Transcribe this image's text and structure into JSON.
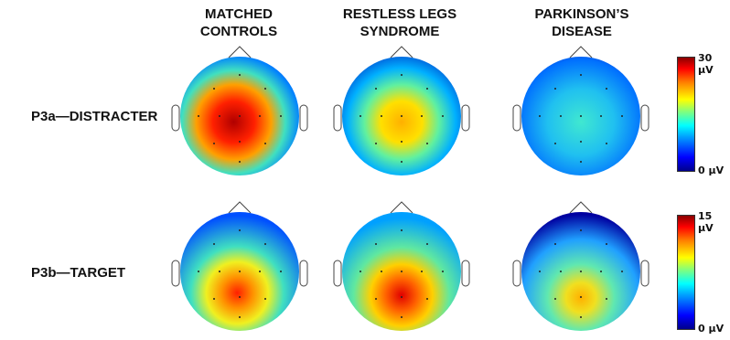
{
  "columns": [
    {
      "line1": "MATCHED",
      "line2": "CONTROLS"
    },
    {
      "line1": "RESTLESS LEGS",
      "line2": "SYNDROME"
    },
    {
      "line1": "PARKINSON’S",
      "line2": "DISEASE"
    }
  ],
  "rows": [
    {
      "label": "P3a—DISTRACTER",
      "scale_max": "30 µV",
      "scale_min": "0 µV"
    },
    {
      "label": "P3b—TARGET",
      "scale_max": "15 µV",
      "scale_min": "0 µV"
    }
  ],
  "colors": {
    "low": "#00008b",
    "mid": "#00ffff",
    "high": "#8b0000"
  }
}
